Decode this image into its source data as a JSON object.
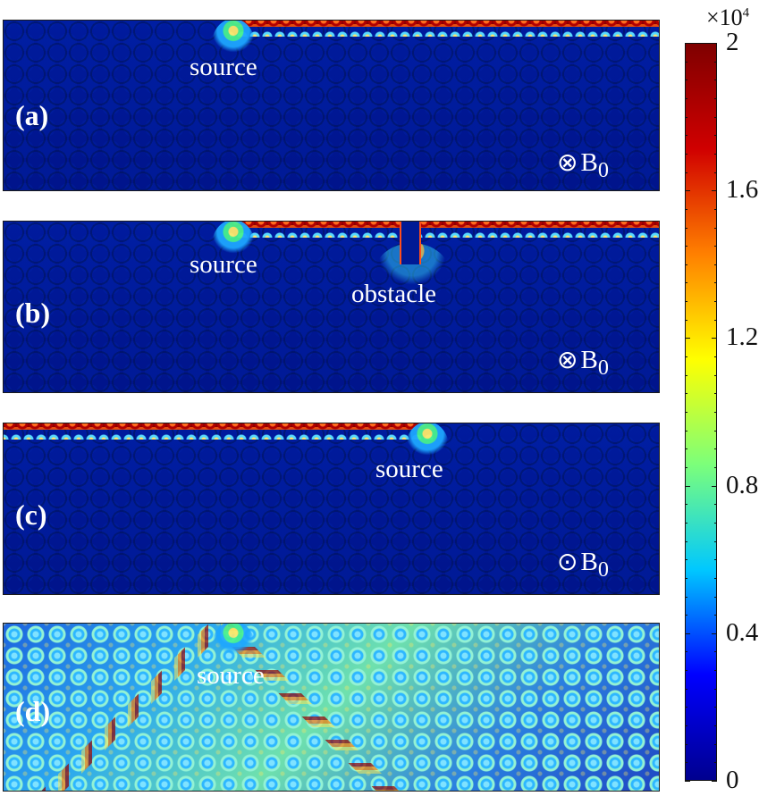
{
  "panels": [
    {
      "id": "a",
      "label": "(a)",
      "source_label": "source",
      "field_label": "⊗ B0",
      "field_symbol": "⊗",
      "field_base": "B",
      "field_subscript": "0"
    },
    {
      "id": "b",
      "label": "(b)",
      "source_label": "source",
      "obstacle_label": "obstacle",
      "field_label": "⊗ B0",
      "field_symbol": "⊗",
      "field_base": "B",
      "field_subscript": "0"
    },
    {
      "id": "c",
      "label": "(c)",
      "source_label": "source",
      "field_label": "⊙ B0",
      "field_symbol": "⊙",
      "field_base": "B",
      "field_subscript": "0"
    },
    {
      "id": "d",
      "label": "(d)",
      "source_label": "source"
    }
  ],
  "colorbar": {
    "exponent_prefix": "×10",
    "exponent_power": "4",
    "min": 0,
    "max": 2,
    "ticks": [
      "2",
      "1.6",
      "1.2",
      "0.8",
      "0.4",
      "0"
    ],
    "colors": [
      "#00008f",
      "#0000ff",
      "#00c8ff",
      "#7cff7a",
      "#ffff00",
      "#ff8000",
      "#d00000",
      "#7f0000"
    ]
  }
}
